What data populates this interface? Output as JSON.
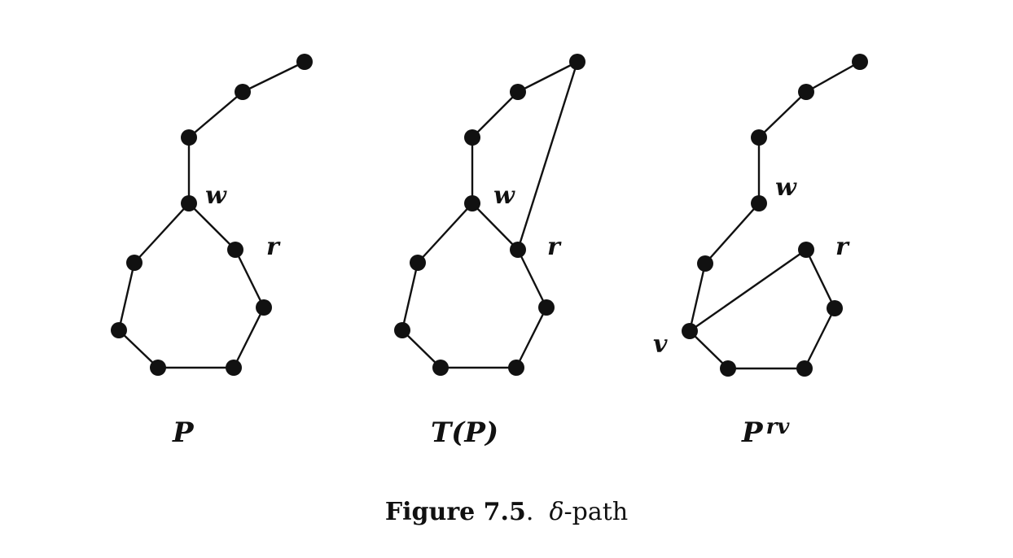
{
  "graphs": [
    {
      "id": "P",
      "title": "P",
      "labels": [
        {
          "node": "w",
          "text": "w"
        },
        {
          "node": "r",
          "text": "r"
        }
      ]
    },
    {
      "id": "TP",
      "title": "T(P)",
      "labels": [
        {
          "node": "w",
          "text": "w"
        },
        {
          "node": "r",
          "text": "r"
        }
      ]
    },
    {
      "id": "Prv",
      "title": "Prv",
      "title_main": "P",
      "title_sup": "rv",
      "labels": [
        {
          "node": "w",
          "text": "w"
        },
        {
          "node": "r",
          "text": "r"
        },
        {
          "node": "v",
          "text": "v"
        }
      ]
    }
  ],
  "caption": {
    "label": "Figure 7.5",
    "separator": ".",
    "symbol": "δ",
    "text": "-path"
  }
}
